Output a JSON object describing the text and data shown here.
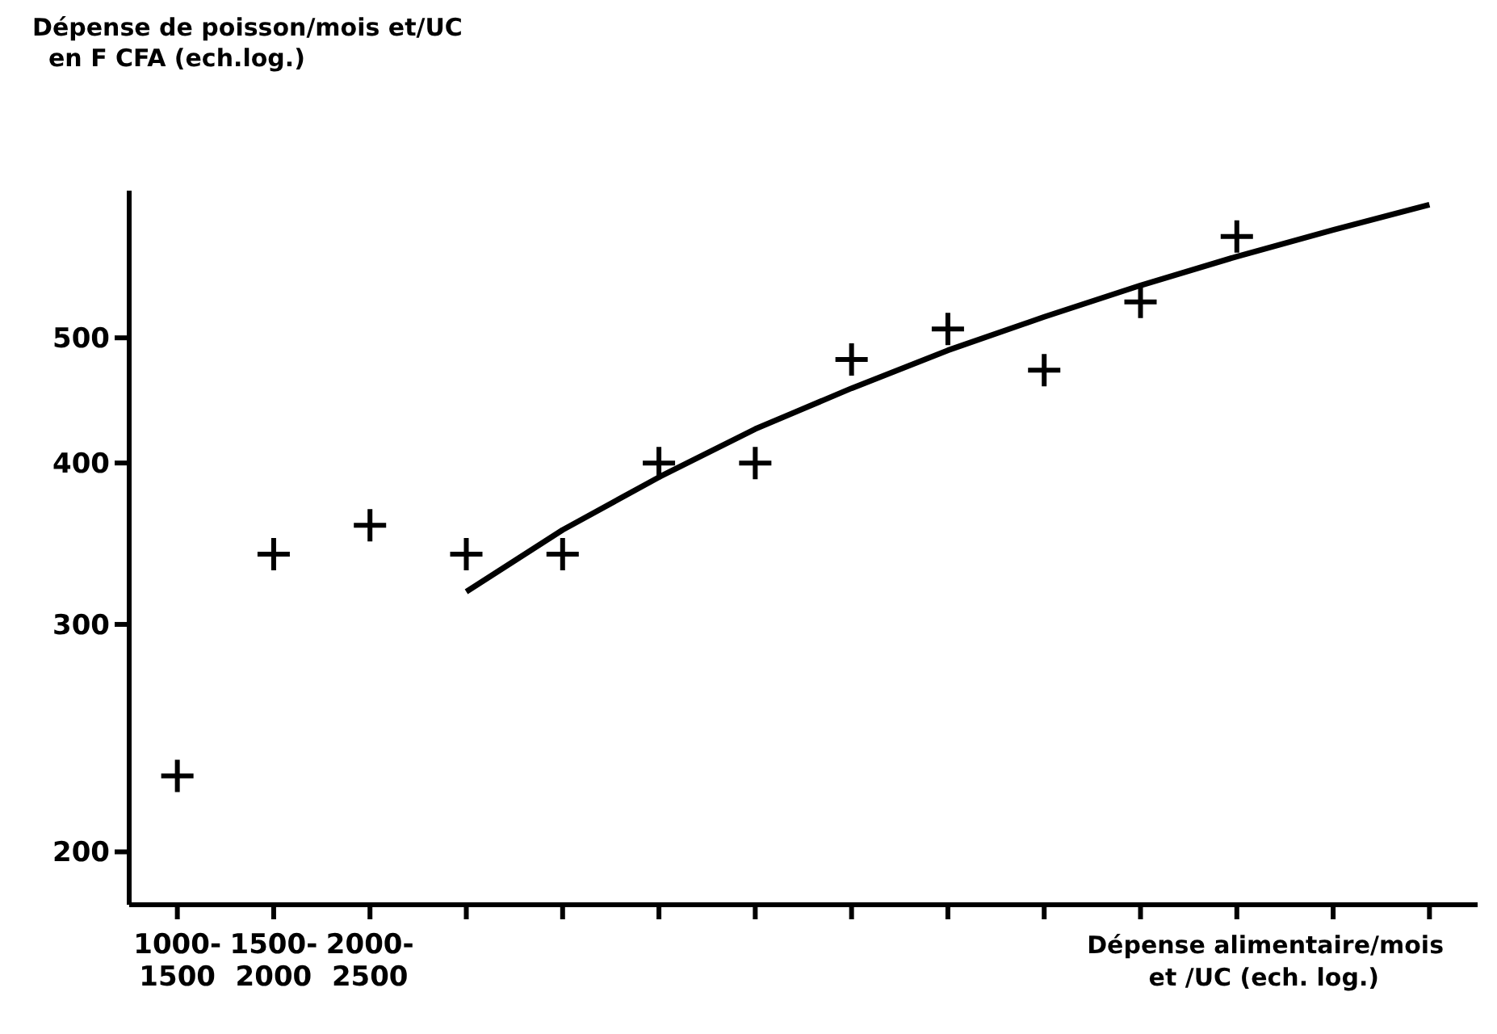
{
  "chart_data": {
    "type": "scatter",
    "xlabel": "Dépense alimentaire/mois et /UC (ech. log.)",
    "ylabel": "Dépense de poisson/mois et/UC en F CFA (ech.log.)",
    "log": "y",
    "marker": "cross",
    "ylim": [
      182,
      650
    ],
    "categories": [
      "1000-1500",
      "1500-2000",
      "2000-2500",
      null,
      null,
      null,
      null,
      null,
      null,
      null,
      null,
      null,
      null,
      null
    ],
    "yticks": [
      200,
      300,
      400,
      500
    ],
    "series": [
      {
        "color": "#000000",
        "values": [
          229,
          340,
          358,
          340,
          340,
          400,
          400,
          481,
          508,
          472,
          533,
          599,
          null,
          null
        ]
      },
      {
        "type": "line",
        "marker": "none",
        "color": "#000000",
        "values": [
          null,
          null,
          null,
          318,
          355,
          390,
          425,
          457,
          489,
          519,
          549,
          578,
          606,
          634
        ]
      }
    ]
  }
}
